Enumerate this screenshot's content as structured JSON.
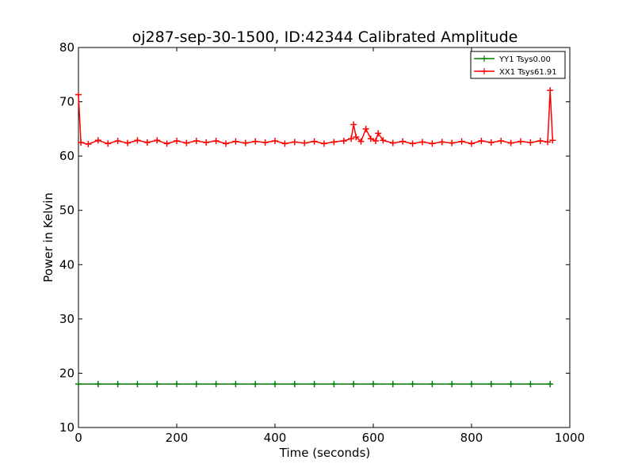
{
  "chart_data": {
    "type": "line",
    "title": "oj287-sep-30-1500, ID:42344 Calibrated Amplitude",
    "xlabel": "Time (seconds)",
    "ylabel": "Power in Kelvin",
    "xlim": [
      0,
      1000
    ],
    "ylim": [
      10,
      80
    ],
    "xticks": [
      0,
      200,
      400,
      600,
      800,
      1000
    ],
    "yticks": [
      10,
      20,
      30,
      40,
      50,
      60,
      70,
      80
    ],
    "grid": false,
    "legend_position": "top-right",
    "series": [
      {
        "name": "YY1 Tsys0.00",
        "color": "#008000",
        "marker": "+",
        "x": [
          0,
          40,
          80,
          120,
          160,
          200,
          240,
          280,
          320,
          360,
          400,
          440,
          480,
          520,
          560,
          600,
          640,
          680,
          720,
          760,
          800,
          840,
          880,
          920,
          960
        ],
        "y": [
          18.0,
          18.0,
          18.0,
          18.0,
          18.0,
          18.0,
          18.0,
          18.0,
          18.0,
          18.0,
          18.0,
          18.0,
          18.0,
          18.0,
          18.0,
          18.0,
          18.0,
          18.0,
          18.0,
          18.0,
          18.0,
          18.0,
          18.0,
          18.0,
          18.0
        ]
      },
      {
        "name": "XX1 Tsys61.91",
        "color": "#ff0000",
        "marker": "+",
        "x": [
          0,
          5,
          20,
          40,
          60,
          80,
          100,
          120,
          140,
          160,
          180,
          200,
          220,
          240,
          260,
          280,
          300,
          320,
          340,
          360,
          380,
          400,
          420,
          440,
          460,
          480,
          500,
          520,
          540,
          555,
          560,
          565,
          575,
          585,
          595,
          605,
          610,
          620,
          640,
          660,
          680,
          700,
          720,
          740,
          760,
          780,
          800,
          820,
          840,
          860,
          880,
          900,
          920,
          940,
          955,
          960,
          965
        ],
        "y": [
          71.3,
          62.5,
          62.2,
          62.9,
          62.3,
          62.8,
          62.4,
          62.9,
          62.5,
          62.9,
          62.3,
          62.8,
          62.4,
          62.8,
          62.5,
          62.8,
          62.3,
          62.7,
          62.4,
          62.7,
          62.5,
          62.8,
          62.3,
          62.6,
          62.4,
          62.7,
          62.3,
          62.6,
          62.8,
          63.2,
          65.8,
          63.5,
          62.7,
          65.0,
          63.2,
          62.8,
          64.2,
          62.9,
          62.4,
          62.7,
          62.3,
          62.6,
          62.3,
          62.6,
          62.4,
          62.7,
          62.3,
          62.8,
          62.5,
          62.8,
          62.4,
          62.7,
          62.5,
          62.8,
          62.6,
          72.1,
          62.9
        ]
      }
    ]
  }
}
